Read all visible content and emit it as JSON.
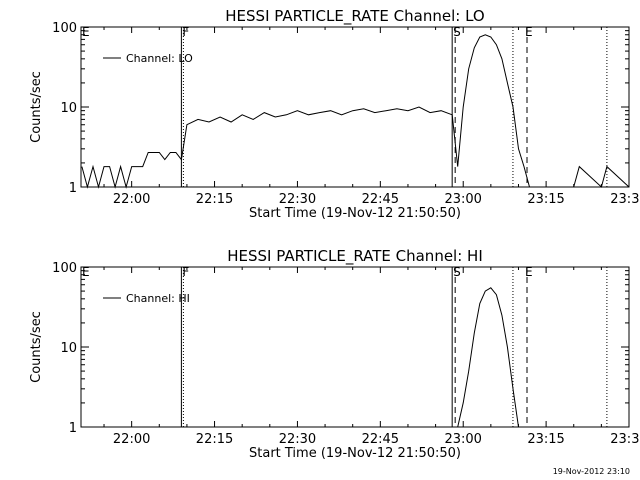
{
  "chart_data": [
    {
      "type": "line",
      "title": "HESSI PARTICLE_RATE Channel: LO",
      "xlabel": "Start Time (19-Nov-12 21:50:50)",
      "ylabel": "Counts/sec",
      "y_scale": "log",
      "ylim": [
        1,
        100
      ],
      "xlim": [
        "21:50:50",
        "23:30"
      ],
      "x_ticks": [
        "22:00",
        "22:15",
        "22:30",
        "22:45",
        "23:00",
        "23:15",
        "23:30"
      ],
      "y_ticks": [
        "1",
        "10",
        "100"
      ],
      "legend": {
        "position": "top-left",
        "entries": [
          "Channel: LO"
        ]
      },
      "events": [
        {
          "label": "E",
          "time": "21:50:50",
          "style": "none"
        },
        {
          "label": "F",
          "time": "22:09",
          "style": "dotted"
        },
        {
          "label": "S",
          "time": "22:58",
          "style": "dashed"
        },
        {
          "label": "E",
          "time": "23:11",
          "style": "dashed"
        }
      ],
      "markers": [
        {
          "time": "22:09",
          "style": "solid"
        },
        {
          "time": "22:58",
          "style": "solid"
        },
        {
          "time": "23:09",
          "style": "dotted"
        },
        {
          "time": "23:26",
          "style": "dotted"
        }
      ],
      "series": [
        {
          "name": "Channel: LO",
          "x": [
            "21:51",
            "21:52",
            "21:53",
            "21:54",
            "21:55",
            "21:56",
            "21:57",
            "21:58",
            "21:59",
            "22:00",
            "22:01",
            "22:02",
            "22:03",
            "22:04",
            "22:05",
            "22:06",
            "22:07",
            "22:08",
            "22:09",
            "22:10",
            "22:12",
            "22:14",
            "22:16",
            "22:18",
            "22:20",
            "22:22",
            "22:24",
            "22:26",
            "22:28",
            "22:30",
            "22:32",
            "22:34",
            "22:36",
            "22:38",
            "22:40",
            "22:42",
            "22:44",
            "22:46",
            "22:48",
            "22:50",
            "22:52",
            "22:54",
            "22:56",
            "22:58",
            "22:59",
            "23:00",
            "23:01",
            "23:02",
            "23:03",
            "23:04",
            "23:05",
            "23:06",
            "23:07",
            "23:08",
            "23:09",
            "23:10",
            "23:11",
            "23:12",
            "23:15",
            "23:18",
            "23:20",
            "23:21",
            "23:25",
            "23:26",
            "23:30"
          ],
          "y": [
            1.8,
            1,
            1.8,
            1,
            1.8,
            1.8,
            1,
            1.8,
            1,
            1.8,
            1.8,
            1.8,
            2.7,
            2.7,
            2.7,
            2.2,
            2.7,
            2.7,
            2.2,
            6,
            7,
            6.5,
            7.5,
            6.5,
            8,
            7,
            8.5,
            7.5,
            8,
            9,
            8,
            8.5,
            9,
            8,
            9,
            9.5,
            8.5,
            9,
            9.5,
            9,
            10,
            8.5,
            9,
            8,
            1.8,
            10,
            30,
            55,
            75,
            80,
            75,
            60,
            40,
            20,
            10,
            3,
            1.8,
            1,
            1,
            1,
            1,
            1.8,
            1,
            1.8,
            1
          ]
        }
      ]
    },
    {
      "type": "line",
      "title": "HESSI PARTICLE_RATE Channel: HI",
      "xlabel": "Start Time (19-Nov-12 21:50:50)",
      "ylabel": "Counts/sec",
      "y_scale": "log",
      "ylim": [
        1,
        100
      ],
      "xlim": [
        "21:50:50",
        "23:30"
      ],
      "x_ticks": [
        "22:00",
        "22:15",
        "22:30",
        "22:45",
        "23:00",
        "23:15",
        "23:30"
      ],
      "y_ticks": [
        "1",
        "10",
        "100"
      ],
      "legend": {
        "position": "top-left",
        "entries": [
          "Channel: HI"
        ]
      },
      "events": [
        {
          "label": "E",
          "time": "21:50:50",
          "style": "none"
        },
        {
          "label": "F",
          "time": "22:09",
          "style": "dotted"
        },
        {
          "label": "S",
          "time": "22:58",
          "style": "dashed"
        },
        {
          "label": "E",
          "time": "23:11",
          "style": "dashed"
        }
      ],
      "markers": [
        {
          "time": "22:09",
          "style": "solid"
        },
        {
          "time": "22:58",
          "style": "solid"
        },
        {
          "time": "23:09",
          "style": "dotted"
        },
        {
          "time": "23:26",
          "style": "dotted"
        }
      ],
      "series": [
        {
          "name": "Channel: HI",
          "x": [
            "22:59",
            "23:00",
            "23:01",
            "23:02",
            "23:03",
            "23:04",
            "23:05",
            "23:06",
            "23:07",
            "23:08",
            "23:09",
            "23:10"
          ],
          "y": [
            1,
            2,
            5,
            15,
            35,
            50,
            55,
            45,
            25,
            10,
            3,
            1
          ]
        }
      ]
    }
  ],
  "footer": {
    "timestamp": "19-Nov-2012 23:10"
  }
}
